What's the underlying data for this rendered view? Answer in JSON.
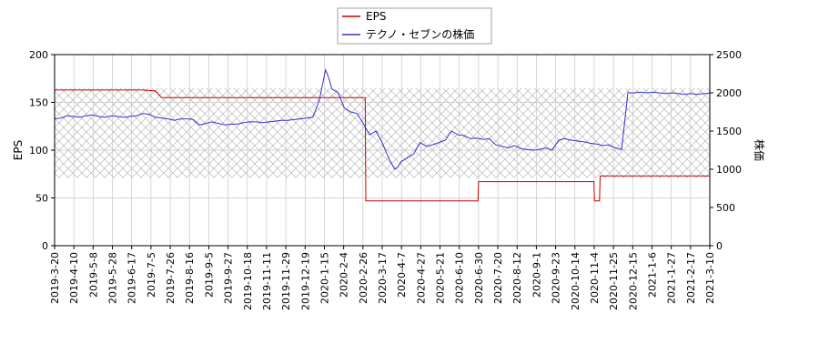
{
  "chart_data": {
    "type": "line",
    "legend": {
      "placement": "top-center",
      "entries": [
        {
          "label": "EPS",
          "color": "#cc0000"
        },
        {
          "label": "テクノ・セブンの株価",
          "color": "#3333cc"
        }
      ]
    },
    "x_ticks": [
      "2019-3-20",
      "2019-4-10",
      "2019-5-8",
      "2019-5-28",
      "2019-6-17",
      "2019-7-5",
      "2019-7-26",
      "2019-8-16",
      "2019-9-5",
      "2019-9-27",
      "2019-10-18",
      "2019-11-11",
      "2019-11-29",
      "2019-12-19",
      "2020-1-15",
      "2020-2-4",
      "2020-2-26",
      "2020-3-17",
      "2020-4-7",
      "2020-4-27",
      "2020-5-21",
      "2020-6-10",
      "2020-6-30",
      "2020-7-20",
      "2020-8-12",
      "2020-9-1",
      "2020-9-23",
      "2020-10-14",
      "2020-11-4",
      "2020-11-25",
      "2020-12-15",
      "2021-1-6",
      "2021-1-27",
      "2021-2-17",
      "2021-3-10"
    ],
    "y_left": {
      "label": "EPS",
      "range": [
        0,
        200
      ],
      "ticks": [
        "0",
        "50",
        "100",
        "150",
        "200"
      ]
    },
    "y_right": {
      "label": "株価",
      "range": [
        0,
        2500
      ],
      "ticks": [
        "0",
        "500",
        "1000",
        "1500",
        "2000",
        "2500"
      ]
    },
    "grid": true,
    "hatched_band_eps": [
      71,
      165
    ],
    "series": [
      {
        "name": "EPS",
        "axis": "left",
        "color": "#cc0000",
        "points": [
          [
            0,
            163
          ],
          [
            3,
            163
          ],
          [
            6,
            163
          ],
          [
            9,
            163
          ],
          [
            12,
            163
          ],
          [
            14,
            163
          ],
          [
            16,
            162
          ],
          [
            17,
            155
          ],
          [
            22,
            155
          ],
          [
            26,
            155
          ],
          [
            30,
            155
          ],
          [
            34,
            155
          ],
          [
            38,
            155
          ],
          [
            42,
            155
          ],
          [
            45,
            155
          ],
          [
            48,
            155
          ],
          [
            49.3,
            155
          ],
          [
            49.4,
            47
          ],
          [
            52,
            47
          ],
          [
            56,
            47
          ],
          [
            60,
            47
          ],
          [
            64,
            47
          ],
          [
            67.2,
            47
          ],
          [
            67.3,
            67
          ],
          [
            70,
            67
          ],
          [
            74,
            67
          ],
          [
            78,
            67
          ],
          [
            82,
            67
          ],
          [
            85.6,
            67
          ],
          [
            85.7,
            47
          ],
          [
            86.5,
            47
          ],
          [
            86.6,
            73
          ],
          [
            90,
            73
          ],
          [
            94,
            73
          ],
          [
            98,
            73
          ],
          [
            102,
            73
          ],
          [
            104,
            73
          ]
        ]
      },
      {
        "name": "テクノ・セブンの株価",
        "axis": "right",
        "color": "#3333cc",
        "points": [
          [
            0,
            1660
          ],
          [
            1,
            1670
          ],
          [
            2,
            1700
          ],
          [
            3,
            1690
          ],
          [
            4,
            1680
          ],
          [
            5,
            1700
          ],
          [
            6,
            1710
          ],
          [
            7,
            1690
          ],
          [
            8,
            1680
          ],
          [
            9,
            1700
          ],
          [
            10,
            1690
          ],
          [
            11,
            1680
          ],
          [
            12,
            1690
          ],
          [
            13,
            1700
          ],
          [
            14,
            1730
          ],
          [
            15,
            1720
          ],
          [
            16,
            1680
          ],
          [
            17,
            1670
          ],
          [
            18,
            1660
          ],
          [
            19,
            1640
          ],
          [
            20,
            1660
          ],
          [
            21,
            1660
          ],
          [
            22,
            1650
          ],
          [
            23,
            1580
          ],
          [
            24,
            1600
          ],
          [
            25,
            1620
          ],
          [
            26,
            1600
          ],
          [
            27,
            1580
          ],
          [
            28,
            1590
          ],
          [
            29,
            1590
          ],
          [
            30,
            1610
          ],
          [
            31,
            1620
          ],
          [
            32,
            1620
          ],
          [
            33,
            1610
          ],
          [
            34,
            1620
          ],
          [
            35,
            1630
          ],
          [
            36,
            1640
          ],
          [
            37,
            1640
          ],
          [
            38,
            1650
          ],
          [
            39,
            1660
          ],
          [
            40,
            1670
          ],
          [
            41,
            1680
          ],
          [
            42,
            1900
          ],
          [
            43,
            2300
          ],
          [
            43.5,
            2200
          ],
          [
            44,
            2050
          ],
          [
            45,
            2000
          ],
          [
            46,
            1800
          ],
          [
            47,
            1750
          ],
          [
            48,
            1730
          ],
          [
            49,
            1600
          ],
          [
            50,
            1450
          ],
          [
            51,
            1500
          ],
          [
            52,
            1350
          ],
          [
            53,
            1150
          ],
          [
            54,
            1000
          ],
          [
            54.5,
            1030
          ],
          [
            55,
            1100
          ],
          [
            56,
            1150
          ],
          [
            57,
            1200
          ],
          [
            58,
            1350
          ],
          [
            59,
            1300
          ],
          [
            60,
            1320
          ],
          [
            61,
            1350
          ],
          [
            62,
            1380
          ],
          [
            63,
            1500
          ],
          [
            64,
            1450
          ],
          [
            65,
            1440
          ],
          [
            66,
            1400
          ],
          [
            67,
            1410
          ],
          [
            68,
            1390
          ],
          [
            69,
            1400
          ],
          [
            70,
            1320
          ],
          [
            71,
            1300
          ],
          [
            72,
            1280
          ],
          [
            73,
            1310
          ],
          [
            74,
            1270
          ],
          [
            75,
            1260
          ],
          [
            76,
            1250
          ],
          [
            77,
            1260
          ],
          [
            78,
            1280
          ],
          [
            79,
            1250
          ],
          [
            80,
            1380
          ],
          [
            81,
            1400
          ],
          [
            82,
            1380
          ],
          [
            83,
            1370
          ],
          [
            84,
            1360
          ],
          [
            85,
            1340
          ],
          [
            86,
            1330
          ],
          [
            87,
            1310
          ],
          [
            88,
            1320
          ],
          [
            89,
            1280
          ],
          [
            90,
            1260
          ],
          [
            91,
            2000
          ],
          [
            92,
            2000
          ],
          [
            93,
            2010
          ],
          [
            94,
            2000
          ],
          [
            95,
            2010
          ],
          [
            96,
            2000
          ],
          [
            97,
            1990
          ],
          [
            98,
            2000
          ],
          [
            99,
            1990
          ],
          [
            100,
            1980
          ],
          [
            101,
            1990
          ],
          [
            102,
            1980
          ],
          [
            103,
            1990
          ],
          [
            104,
            1990
          ]
        ]
      }
    ]
  }
}
